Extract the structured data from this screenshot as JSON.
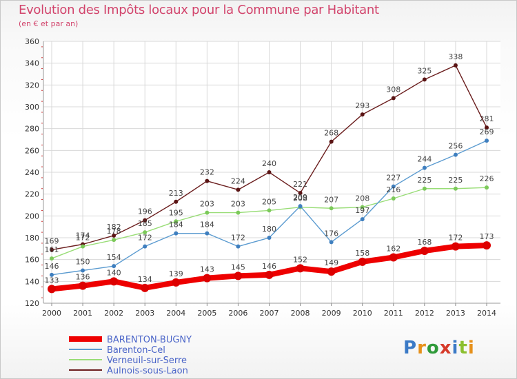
{
  "chart_data": {
    "type": "line",
    "title": "Evolution des Impôts locaux pour la Commune par Habitant",
    "subtitle": "(en € et par an)",
    "categories": [
      "2000",
      "2001",
      "2002",
      "2003",
      "2004",
      "2005",
      "2006",
      "2007",
      "2008",
      "2009",
      "2010",
      "2011",
      "2012",
      "2013",
      "2014"
    ],
    "ylim": [
      120,
      360
    ],
    "yticks": [
      120,
      140,
      160,
      180,
      200,
      220,
      240,
      260,
      280,
      300,
      320,
      340,
      360
    ],
    "grid": true,
    "legend_position": "bottom-left",
    "series": [
      {
        "name": "BARENTON-BUGNY",
        "color": "#ee0000",
        "values": [
          133,
          136,
          140,
          134,
          139,
          143,
          145,
          146,
          152,
          149,
          158,
          162,
          168,
          172,
          173
        ]
      },
      {
        "name": "Barenton-Cel",
        "color": "#5b9bd0",
        "values": [
          146,
          150,
          154,
          172,
          184,
          184,
          172,
          180,
          209,
          176,
          197,
          227,
          244,
          256,
          269
        ]
      },
      {
        "name": "Verneuil-sur-Serre",
        "color": "#99dd77",
        "values": [
          161,
          172,
          178,
          185,
          195,
          203,
          203,
          205,
          208,
          207,
          208,
          216,
          225,
          225,
          226
        ]
      },
      {
        "name": "Aulnois-sous-Laon",
        "color": "#6b1e1e",
        "values": [
          169,
          174,
          182,
          196,
          213,
          232,
          224,
          240,
          221,
          268,
          293,
          308,
          325,
          338,
          281
        ]
      }
    ]
  },
  "logo": {
    "p": "P",
    "r": "r",
    "o": "o",
    "x": "x",
    "i1": "i",
    "t": "t",
    "i2": "i"
  }
}
